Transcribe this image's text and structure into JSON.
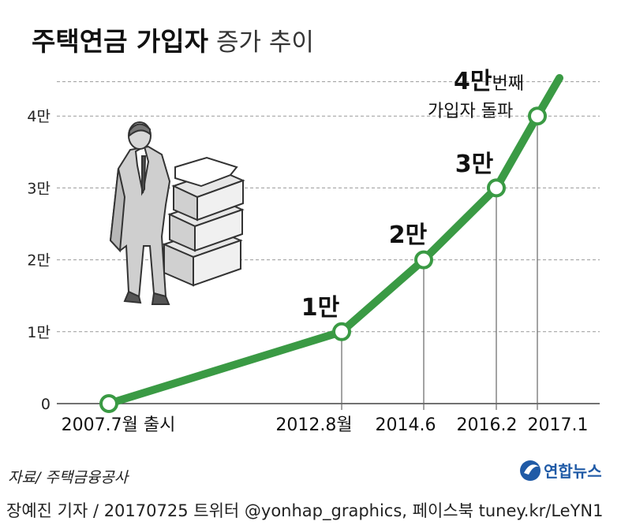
{
  "title": {
    "bold": "주택연금 가입자",
    "light": "증가 추이"
  },
  "chart_data": {
    "type": "line",
    "title": "주택연금 가입자 증가 추이",
    "x": [
      "2007.7월 출시",
      "2012.8월",
      "2014.6",
      "2016.2",
      "2017.1"
    ],
    "values": [
      0,
      10000,
      20000,
      30000,
      40000
    ],
    "point_labels": [
      "",
      "1만",
      "2만",
      "3만",
      "4만번째"
    ],
    "y_ticks": [
      "0",
      "1만",
      "2만",
      "3만",
      "4만"
    ],
    "y_tick_values": [
      0,
      10000,
      20000,
      30000,
      40000
    ],
    "ylim": [
      0,
      45000
    ],
    "grid": true,
    "line_color": "#3a9a44",
    "annotation": {
      "big": "4만",
      "small": "번째",
      "line2": "가입자 돌파"
    }
  },
  "source": "자료/ 주택금융공사",
  "credit": "장예진 기자 / 20170725 트위터 @yonhap_graphics, 페이스북 tuney.kr/LeYN1",
  "logo": {
    "name": "연합뉴스",
    "icon": "yonhap-logo-icon"
  }
}
